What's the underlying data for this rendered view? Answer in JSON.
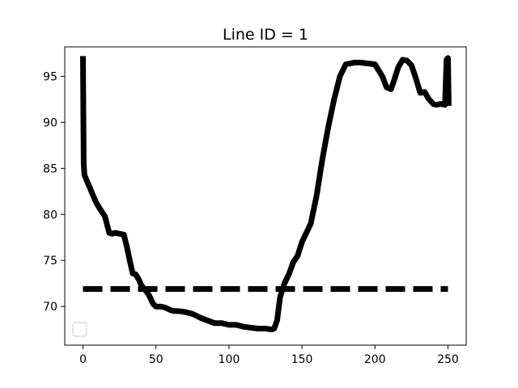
{
  "chart_data": {
    "type": "line",
    "title": "Line ID = 1",
    "xlabel": "",
    "ylabel": "",
    "xlim": [
      -12.5,
      262.5
    ],
    "ylim": [
      65.8,
      98.2
    ],
    "xticks": [
      0,
      50,
      100,
      150,
      200,
      250
    ],
    "yticks": [
      70,
      75,
      80,
      85,
      90,
      95
    ],
    "grid": false,
    "legend": "empty box, lower-left",
    "series": [
      {
        "style": "solid",
        "color": "#000000",
        "x": [
          0,
          0.5,
          1,
          3,
          5,
          7,
          9,
          12,
          15,
          18,
          20,
          22,
          25,
          28,
          30,
          32,
          34,
          36,
          38,
          40,
          42,
          45,
          48,
          50,
          53,
          56,
          60,
          63,
          66,
          70,
          75,
          80,
          85,
          90,
          95,
          100,
          105,
          110,
          115,
          120,
          125,
          129,
          131,
          133,
          135,
          138,
          141,
          144,
          147,
          150,
          153,
          156,
          160,
          164,
          168,
          172,
          176,
          180,
          183,
          186,
          190,
          195,
          200,
          205,
          208,
          211,
          213,
          216,
          219,
          222,
          225,
          228,
          231,
          234,
          237,
          240,
          242,
          245,
          248,
          249,
          250,
          250.5
        ],
        "y": [
          97.2,
          85.6,
          84.3,
          83.5,
          82.8,
          82.0,
          81.3,
          80.5,
          79.8,
          78.0,
          77.9,
          78.0,
          77.9,
          77.8,
          76.5,
          75.0,
          73.6,
          73.5,
          73.0,
          72.3,
          71.9,
          71.3,
          70.3,
          70.0,
          70.0,
          69.9,
          69.6,
          69.5,
          69.5,
          69.4,
          69.2,
          68.8,
          68.5,
          68.2,
          68.2,
          68.0,
          68.0,
          67.8,
          67.7,
          67.6,
          67.6,
          67.5,
          67.6,
          68.5,
          71.0,
          72.5,
          73.5,
          74.8,
          75.5,
          77.0,
          78.0,
          79.0,
          82.0,
          86.0,
          89.5,
          92.5,
          95.0,
          96.3,
          96.4,
          96.5,
          96.5,
          96.4,
          96.3,
          95.0,
          93.8,
          93.6,
          94.5,
          96.0,
          96.8,
          96.7,
          96.2,
          94.8,
          93.2,
          93.3,
          92.5,
          92.0,
          91.9,
          92.0,
          91.9,
          96.8,
          97.0,
          91.8
        ]
      },
      {
        "style": "dashed",
        "color": "#000000",
        "x": [
          0,
          250
        ],
        "y": [
          71.9,
          71.9
        ]
      }
    ]
  }
}
